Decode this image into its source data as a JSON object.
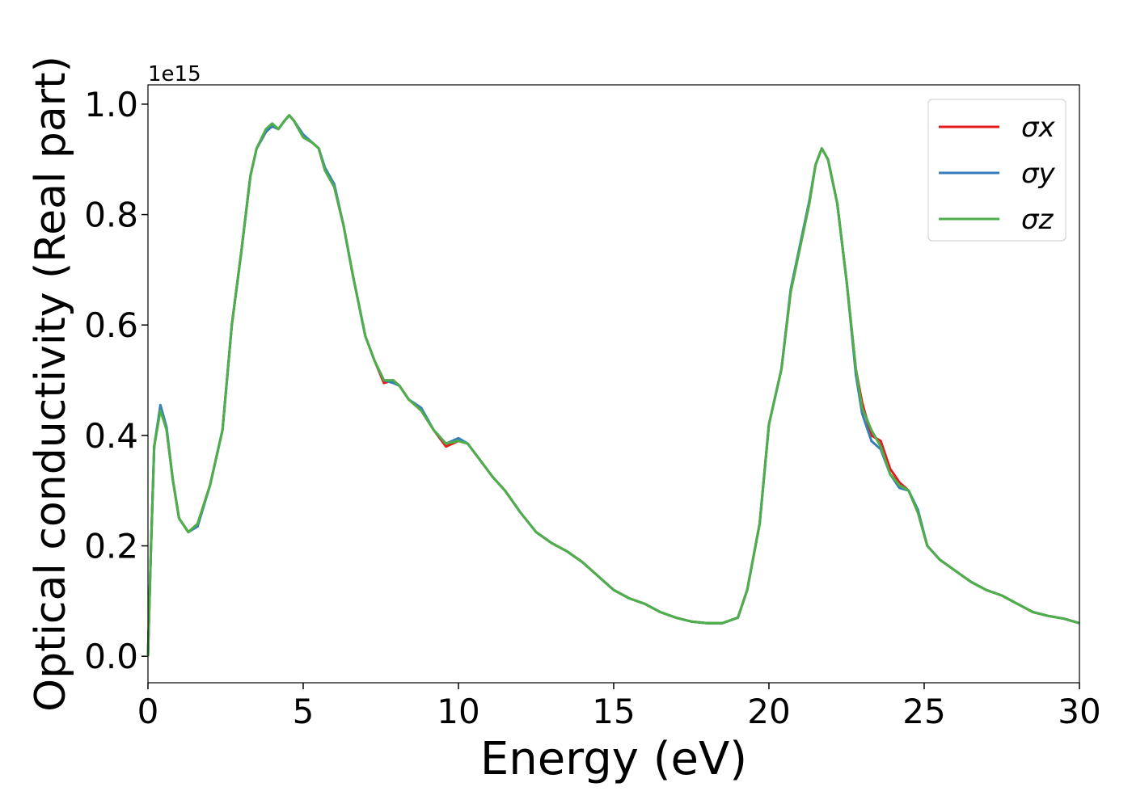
{
  "chart_data": {
    "type": "line",
    "xlabel": "Energy (eV)",
    "ylabel": "Optical conductivity (Real part)",
    "y_offset_label": "1e15",
    "xlim": [
      0,
      30
    ],
    "ylim": [
      -0.048,
      1.035
    ],
    "xticks": [
      0,
      5,
      10,
      15,
      20,
      25,
      30
    ],
    "yticks": [
      {
        "value": 0,
        "label": "0.0"
      },
      0.2,
      0.4,
      0.6,
      0.8,
      {
        "value": 1,
        "label": "1.0"
      }
    ],
    "legend": "upper right",
    "x": [
      0,
      0.1,
      0.2,
      0.4,
      0.6,
      0.8,
      1.0,
      1.3,
      1.6,
      2.0,
      2.4,
      2.7,
      3.0,
      3.3,
      3.5,
      3.8,
      4.0,
      4.2,
      4.4,
      4.55,
      4.7,
      5.0,
      5.3,
      5.5,
      5.7,
      6.0,
      6.3,
      6.6,
      7.0,
      7.3,
      7.6,
      7.9,
      8.1,
      8.4,
      8.8,
      9.2,
      9.6,
      10.0,
      10.3,
      10.7,
      11.1,
      11.5,
      12.0,
      12.5,
      13.0,
      13.5,
      14.0,
      14.5,
      15.0,
      15.5,
      16.0,
      16.5,
      17.0,
      17.5,
      18.0,
      18.5,
      19.0,
      19.3,
      19.7,
      20.0,
      20.4,
      20.7,
      21.0,
      21.3,
      21.5,
      21.7,
      21.9,
      22.2,
      22.5,
      22.8,
      23.0,
      23.3,
      23.6,
      23.9,
      24.2,
      24.5,
      24.8,
      25.1,
      25.5,
      26.0,
      26.5,
      27.0,
      27.5,
      28.0,
      28.5,
      29.0,
      29.5,
      30.0
    ],
    "series": [
      {
        "name": "σx",
        "color": "#e41a1c",
        "values": [
          0,
          0.2,
          0.38,
          0.45,
          0.41,
          0.32,
          0.25,
          0.225,
          0.24,
          0.31,
          0.41,
          0.6,
          0.73,
          0.87,
          0.92,
          0.95,
          0.96,
          0.955,
          0.97,
          0.98,
          0.97,
          0.94,
          0.93,
          0.92,
          0.88,
          0.85,
          0.78,
          0.69,
          0.58,
          0.535,
          0.495,
          0.5,
          0.49,
          0.465,
          0.445,
          0.41,
          0.38,
          0.39,
          0.385,
          0.355,
          0.325,
          0.3,
          0.26,
          0.225,
          0.205,
          0.19,
          0.17,
          0.145,
          0.12,
          0.105,
          0.095,
          0.08,
          0.07,
          0.063,
          0.06,
          0.06,
          0.07,
          0.12,
          0.24,
          0.42,
          0.52,
          0.66,
          0.74,
          0.82,
          0.89,
          0.92,
          0.9,
          0.82,
          0.68,
          0.52,
          0.46,
          0.4,
          0.39,
          0.34,
          0.315,
          0.3,
          0.26,
          0.2,
          0.175,
          0.155,
          0.135,
          0.12,
          0.11,
          0.095,
          0.08,
          0.073,
          0.068,
          0.06
        ]
      },
      {
        "name": "σy",
        "color": "#377eb8",
        "values": [
          0,
          0.2,
          0.38,
          0.455,
          0.415,
          0.32,
          0.25,
          0.225,
          0.235,
          0.31,
          0.41,
          0.6,
          0.73,
          0.87,
          0.92,
          0.95,
          0.96,
          0.955,
          0.97,
          0.98,
          0.97,
          0.945,
          0.93,
          0.92,
          0.885,
          0.855,
          0.78,
          0.69,
          0.58,
          0.535,
          0.5,
          0.495,
          0.49,
          0.465,
          0.45,
          0.41,
          0.385,
          0.395,
          0.385,
          0.355,
          0.325,
          0.3,
          0.26,
          0.225,
          0.205,
          0.19,
          0.17,
          0.145,
          0.12,
          0.105,
          0.095,
          0.08,
          0.07,
          0.063,
          0.06,
          0.06,
          0.07,
          0.12,
          0.24,
          0.42,
          0.52,
          0.665,
          0.745,
          0.825,
          0.89,
          0.92,
          0.9,
          0.82,
          0.68,
          0.51,
          0.44,
          0.39,
          0.375,
          0.33,
          0.305,
          0.3,
          0.265,
          0.2,
          0.175,
          0.155,
          0.135,
          0.12,
          0.11,
          0.095,
          0.08,
          0.073,
          0.068,
          0.06
        ]
      },
      {
        "name": "σz",
        "color": "#4daf4a",
        "values": [
          0,
          0.2,
          0.38,
          0.445,
          0.41,
          0.32,
          0.25,
          0.225,
          0.24,
          0.31,
          0.41,
          0.6,
          0.73,
          0.87,
          0.92,
          0.955,
          0.965,
          0.955,
          0.97,
          0.98,
          0.97,
          0.94,
          0.93,
          0.92,
          0.88,
          0.85,
          0.78,
          0.69,
          0.58,
          0.535,
          0.5,
          0.5,
          0.49,
          0.465,
          0.445,
          0.41,
          0.385,
          0.39,
          0.385,
          0.355,
          0.325,
          0.3,
          0.26,
          0.225,
          0.205,
          0.19,
          0.17,
          0.145,
          0.12,
          0.105,
          0.095,
          0.08,
          0.07,
          0.063,
          0.06,
          0.06,
          0.07,
          0.12,
          0.24,
          0.42,
          0.52,
          0.66,
          0.74,
          0.82,
          0.89,
          0.92,
          0.9,
          0.82,
          0.68,
          0.52,
          0.45,
          0.41,
          0.38,
          0.33,
          0.31,
          0.3,
          0.26,
          0.2,
          0.175,
          0.155,
          0.135,
          0.12,
          0.11,
          0.095,
          0.08,
          0.073,
          0.068,
          0.06
        ]
      }
    ]
  }
}
